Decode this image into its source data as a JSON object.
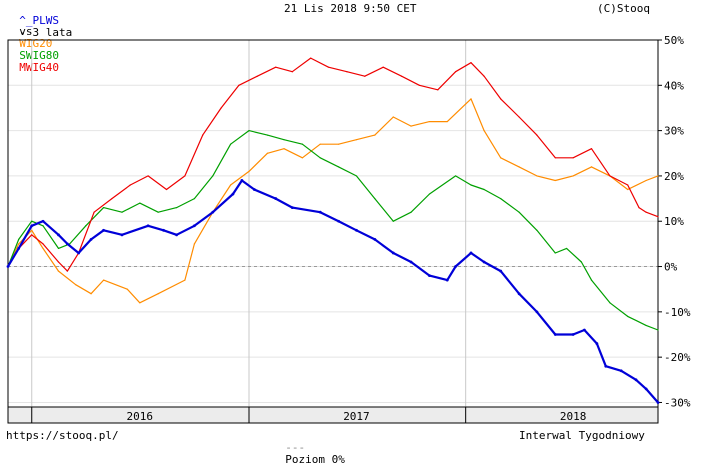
{
  "header": {
    "ticker": "^_PLWS",
    "period": "- 3 lata",
    "timestamp": "21 Lis 2018 9:50 CET",
    "copyright": "(C)Stooq",
    "vs_label": "vs"
  },
  "footer": {
    "url": "https://stooq.pl/",
    "level_label": "Poziom 0%",
    "interval": "Interwal Tygodniowy"
  },
  "colors": {
    "plws": "#0000d8",
    "wig20": "#ff8c00",
    "swig80": "#00a000",
    "mwig40": "#ee0000"
  },
  "chart_data": {
    "type": "line",
    "x_unit": "date",
    "y_unit": "%",
    "ylim": [
      -31,
      50
    ],
    "xlim": [
      "2015-11-22",
      "2018-11-21"
    ],
    "yticks": [
      "50%",
      "40%",
      "30%",
      "20%",
      "10%",
      "0%",
      "-10%",
      "-20%",
      "-30%"
    ],
    "ytick_values": [
      50,
      40,
      30,
      20,
      10,
      0,
      -10,
      -20,
      -30
    ],
    "year_labels": [
      "2016",
      "2017",
      "2018"
    ],
    "year_label_dates": [
      "2016-07-01",
      "2017-07-01",
      "2018-07-01"
    ],
    "year_boundaries": [
      "2016-01-01",
      "2017-01-01",
      "2018-01-01"
    ],
    "reference_line": 0,
    "grid": true,
    "series": [
      {
        "name": "^_PLWS",
        "color_key": "plws",
        "points": [
          [
            "2015-11-22",
            0
          ],
          [
            "2015-12-10",
            4
          ],
          [
            "2016-01-01",
            9
          ],
          [
            "2016-01-20",
            10
          ],
          [
            "2016-02-15",
            7
          ],
          [
            "2016-03-01",
            5
          ],
          [
            "2016-03-20",
            3
          ],
          [
            "2016-04-10",
            6
          ],
          [
            "2016-05-01",
            8
          ],
          [
            "2016-06-01",
            7
          ],
          [
            "2016-07-15",
            9
          ],
          [
            "2016-08-10",
            8
          ],
          [
            "2016-09-01",
            7
          ],
          [
            "2016-10-01",
            9
          ],
          [
            "2016-11-01",
            12
          ],
          [
            "2016-12-05",
            16
          ],
          [
            "2016-12-20",
            19
          ],
          [
            "2017-01-10",
            17
          ],
          [
            "2017-02-15",
            15
          ],
          [
            "2017-03-15",
            13
          ],
          [
            "2017-05-01",
            12
          ],
          [
            "2017-06-01",
            10
          ],
          [
            "2017-07-01",
            8
          ],
          [
            "2017-08-01",
            6
          ],
          [
            "2017-09-01",
            3
          ],
          [
            "2017-10-01",
            1
          ],
          [
            "2017-11-01",
            -2
          ],
          [
            "2017-12-01",
            -3
          ],
          [
            "2017-12-15",
            0
          ],
          [
            "2018-01-10",
            3
          ],
          [
            "2018-02-01",
            1
          ],
          [
            "2018-03-01",
            -1
          ],
          [
            "2018-04-01",
            -6
          ],
          [
            "2018-05-01",
            -10
          ],
          [
            "2018-06-01",
            -15
          ],
          [
            "2018-07-01",
            -15
          ],
          [
            "2018-07-20",
            -14
          ],
          [
            "2018-08-10",
            -17
          ],
          [
            "2018-08-25",
            -22
          ],
          [
            "2018-09-20",
            -23
          ],
          [
            "2018-10-15",
            -25
          ],
          [
            "2018-11-01",
            -27
          ],
          [
            "2018-11-21",
            -30
          ]
        ]
      },
      {
        "name": "WIG20",
        "color_key": "wig20",
        "points": [
          [
            "2015-11-22",
            0
          ],
          [
            "2015-12-10",
            5
          ],
          [
            "2016-01-01",
            8
          ],
          [
            "2016-01-20",
            4
          ],
          [
            "2016-02-15",
            -1
          ],
          [
            "2016-03-15",
            -4
          ],
          [
            "2016-04-10",
            -6
          ],
          [
            "2016-05-01",
            -3
          ],
          [
            "2016-06-10",
            -5
          ],
          [
            "2016-07-01",
            -8
          ],
          [
            "2016-08-01",
            -6
          ],
          [
            "2016-09-15",
            -3
          ],
          [
            "2016-10-01",
            5
          ],
          [
            "2016-11-01",
            12
          ],
          [
            "2016-12-01",
            18
          ],
          [
            "2017-01-01",
            21
          ],
          [
            "2017-02-01",
            25
          ],
          [
            "2017-03-01",
            26
          ],
          [
            "2017-04-01",
            24
          ],
          [
            "2017-05-01",
            27
          ],
          [
            "2017-06-01",
            27
          ],
          [
            "2017-07-01",
            28
          ],
          [
            "2017-08-01",
            29
          ],
          [
            "2017-09-01",
            33
          ],
          [
            "2017-10-01",
            31
          ],
          [
            "2017-11-01",
            32
          ],
          [
            "2017-12-01",
            32
          ],
          [
            "2018-01-10",
            37
          ],
          [
            "2018-02-01",
            30
          ],
          [
            "2018-03-01",
            24
          ],
          [
            "2018-04-01",
            22
          ],
          [
            "2018-05-01",
            20
          ],
          [
            "2018-06-01",
            19
          ],
          [
            "2018-07-01",
            20
          ],
          [
            "2018-08-01",
            22
          ],
          [
            "2018-09-01",
            20
          ],
          [
            "2018-10-01",
            17
          ],
          [
            "2018-11-01",
            19
          ],
          [
            "2018-11-21",
            20
          ]
        ]
      },
      {
        "name": "SWIG80",
        "color_key": "swig80",
        "points": [
          [
            "2015-11-22",
            0
          ],
          [
            "2015-12-10",
            6
          ],
          [
            "2016-01-01",
            10
          ],
          [
            "2016-01-20",
            9
          ],
          [
            "2016-02-15",
            4
          ],
          [
            "2016-03-05",
            5
          ],
          [
            "2016-04-01",
            9
          ],
          [
            "2016-05-01",
            13
          ],
          [
            "2016-06-01",
            12
          ],
          [
            "2016-07-01",
            14
          ],
          [
            "2016-08-01",
            12
          ],
          [
            "2016-09-01",
            13
          ],
          [
            "2016-10-01",
            15
          ],
          [
            "2016-11-01",
            20
          ],
          [
            "2016-12-01",
            27
          ],
          [
            "2017-01-01",
            30
          ],
          [
            "2017-02-01",
            29
          ],
          [
            "2017-03-01",
            28
          ],
          [
            "2017-04-01",
            27
          ],
          [
            "2017-05-01",
            24
          ],
          [
            "2017-06-01",
            22
          ],
          [
            "2017-07-01",
            20
          ],
          [
            "2017-08-01",
            15
          ],
          [
            "2017-09-01",
            10
          ],
          [
            "2017-10-01",
            12
          ],
          [
            "2017-11-01",
            16
          ],
          [
            "2017-12-15",
            20
          ],
          [
            "2018-01-10",
            18
          ],
          [
            "2018-02-01",
            17
          ],
          [
            "2018-03-01",
            15
          ],
          [
            "2018-04-01",
            12
          ],
          [
            "2018-05-01",
            8
          ],
          [
            "2018-06-01",
            3
          ],
          [
            "2018-06-20",
            4
          ],
          [
            "2018-07-15",
            1
          ],
          [
            "2018-08-01",
            -3
          ],
          [
            "2018-09-01",
            -8
          ],
          [
            "2018-10-01",
            -11
          ],
          [
            "2018-11-01",
            -13
          ],
          [
            "2018-11-21",
            -14
          ]
        ]
      },
      {
        "name": "MWIG40",
        "color_key": "mwig40",
        "points": [
          [
            "2015-11-22",
            0
          ],
          [
            "2015-12-10",
            4
          ],
          [
            "2016-01-01",
            7
          ],
          [
            "2016-01-20",
            5
          ],
          [
            "2016-02-15",
            1
          ],
          [
            "2016-03-01",
            -1
          ],
          [
            "2016-03-20",
            3
          ],
          [
            "2016-04-15",
            12
          ],
          [
            "2016-05-15",
            15
          ],
          [
            "2016-06-15",
            18
          ],
          [
            "2016-07-15",
            20
          ],
          [
            "2016-08-15",
            17
          ],
          [
            "2016-09-15",
            20
          ],
          [
            "2016-10-15",
            29
          ],
          [
            "2016-11-15",
            35
          ],
          [
            "2016-12-15",
            40
          ],
          [
            "2017-01-15",
            42
          ],
          [
            "2017-02-15",
            44
          ],
          [
            "2017-03-15",
            43
          ],
          [
            "2017-04-15",
            46
          ],
          [
            "2017-05-15",
            44
          ],
          [
            "2017-06-15",
            43
          ],
          [
            "2017-07-15",
            42
          ],
          [
            "2017-08-15",
            44
          ],
          [
            "2017-09-15",
            42
          ],
          [
            "2017-10-15",
            40
          ],
          [
            "2017-11-15",
            39
          ],
          [
            "2017-12-15",
            43
          ],
          [
            "2018-01-10",
            45
          ],
          [
            "2018-02-01",
            42
          ],
          [
            "2018-03-01",
            37
          ],
          [
            "2018-04-01",
            33
          ],
          [
            "2018-05-01",
            29
          ],
          [
            "2018-06-01",
            24
          ],
          [
            "2018-07-01",
            24
          ],
          [
            "2018-08-01",
            26
          ],
          [
            "2018-09-01",
            20
          ],
          [
            "2018-10-01",
            18
          ],
          [
            "2018-10-20",
            13
          ],
          [
            "2018-11-01",
            12
          ],
          [
            "2018-11-21",
            11
          ]
        ]
      }
    ]
  }
}
